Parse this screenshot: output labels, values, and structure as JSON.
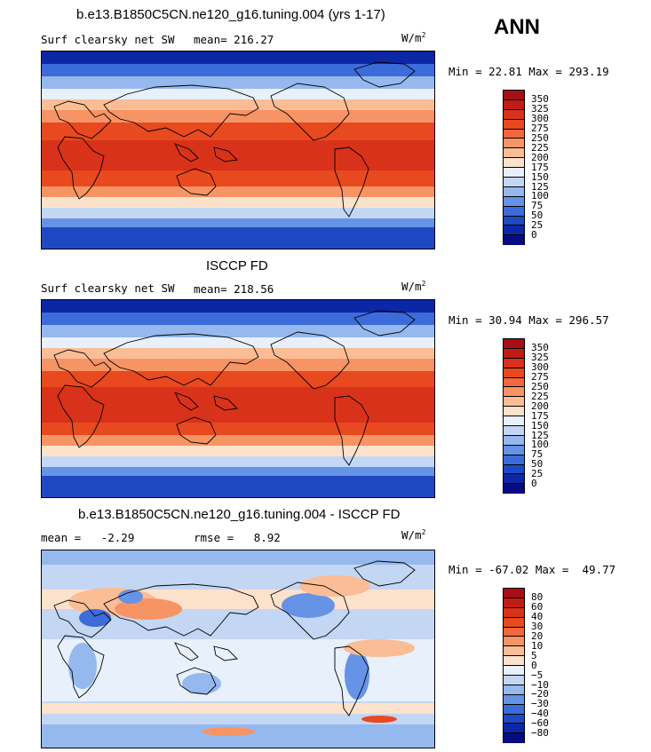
{
  "season": "ANN",
  "panels": [
    {
      "title": "b.e13.B1850C5CN.ne120_g16.tuning.004 (yrs 1-17)",
      "left_label": "Surf clearsky net SW",
      "stat": "mean= 216.27",
      "units": "W/m",
      "units_sup": "2",
      "minmax": "Min =  22.81 Max = 293.19",
      "colorbar": {
        "labels": [
          "350",
          "325",
          "300",
          "275",
          "250",
          "225",
          "200",
          "175",
          "150",
          "125",
          "100",
          "75",
          "50",
          "25",
          "0"
        ],
        "colors": [
          "#a50f15",
          "#c01c14",
          "#d9321a",
          "#e8491f",
          "#f2683c",
          "#f79465",
          "#fbbd96",
          "#fde2cb",
          "#e8f0fb",
          "#c3d7f4",
          "#95b9ee",
          "#6693e6",
          "#3b6cd9",
          "#1f49c4",
          "#0c27a6",
          "#060b82"
        ]
      }
    },
    {
      "title": "ISCCP FD",
      "left_label": "Surf clearsky net SW",
      "stat": "mean= 218.56",
      "units": "W/m",
      "units_sup": "2",
      "minmax": "Min =  30.94 Max = 296.57",
      "colorbar": {
        "labels": [
          "350",
          "325",
          "300",
          "275",
          "250",
          "225",
          "200",
          "175",
          "150",
          "125",
          "100",
          "75",
          "50",
          "25",
          "0"
        ],
        "colors": [
          "#a50f15",
          "#c01c14",
          "#d9321a",
          "#e8491f",
          "#f2683c",
          "#f79465",
          "#fbbd96",
          "#fde2cb",
          "#e8f0fb",
          "#c3d7f4",
          "#95b9ee",
          "#6693e6",
          "#3b6cd9",
          "#1f49c4",
          "#0c27a6",
          "#060b82"
        ]
      }
    },
    {
      "title": "b.e13.B1850C5CN.ne120_g16.tuning.004 - ISCCP FD",
      "left_label": "mean =   -2.29",
      "stat": "rmse =   8.92",
      "units": "W/m",
      "units_sup": "2",
      "minmax": "Min = -67.02 Max =  49.77",
      "colorbar": {
        "labels": [
          "80",
          "60",
          "40",
          "30",
          "20",
          "10",
          "5",
          "0",
          "−5",
          "−10",
          "−20",
          "−30",
          "−40",
          "−60",
          "−80"
        ],
        "colors": [
          "#a50f15",
          "#c01c14",
          "#d9321a",
          "#e8491f",
          "#f2683c",
          "#f79465",
          "#fbbd96",
          "#fde2cb",
          "#e8f0fb",
          "#c3d7f4",
          "#95b9ee",
          "#6693e6",
          "#3b6cd9",
          "#1f49c4",
          "#0c27a6",
          "#060b82"
        ]
      }
    }
  ]
}
